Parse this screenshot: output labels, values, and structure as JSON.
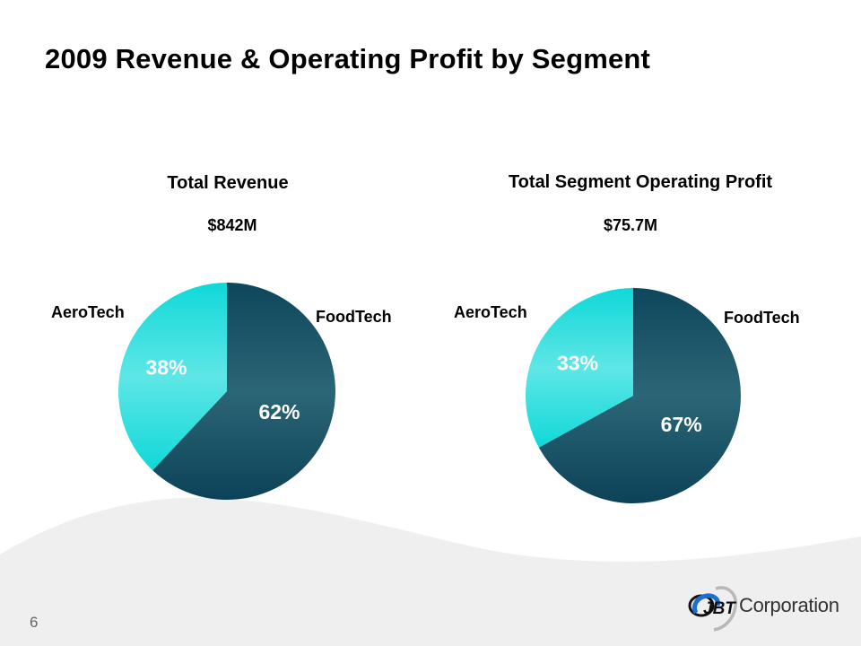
{
  "slide": {
    "title": "2009 Revenue & Operating Profit by Segment",
    "page_number": "6",
    "logo": {
      "mark": "JBT",
      "text": "Corporation"
    }
  },
  "colors": {
    "aerotech_top": "#10d8d8",
    "aerotech_mid": "#5fe6e6",
    "foodtech_top": "#0e465b",
    "foodtech_mid": "#2b6676",
    "foodtech_bottom": "#0c4258",
    "wave": "#efefef",
    "label_on_slice": "#ffffff"
  },
  "chart_data": [
    {
      "type": "pie",
      "title": "Total Revenue",
      "subtitle": "$842M",
      "categories": [
        "FoodTech",
        "AeroTech"
      ],
      "values": [
        62,
        38
      ],
      "data_labels": [
        "62%",
        "38%"
      ],
      "unit": "%",
      "start": "12 o'clock, clockwise"
    },
    {
      "type": "pie",
      "title": "Total Segment Operating Profit",
      "subtitle": "$75.7M",
      "categories": [
        "FoodTech",
        "AeroTech"
      ],
      "values": [
        67,
        33
      ],
      "data_labels": [
        "67%",
        "33%"
      ],
      "unit": "%",
      "start": "12 o'clock, clockwise"
    }
  ]
}
